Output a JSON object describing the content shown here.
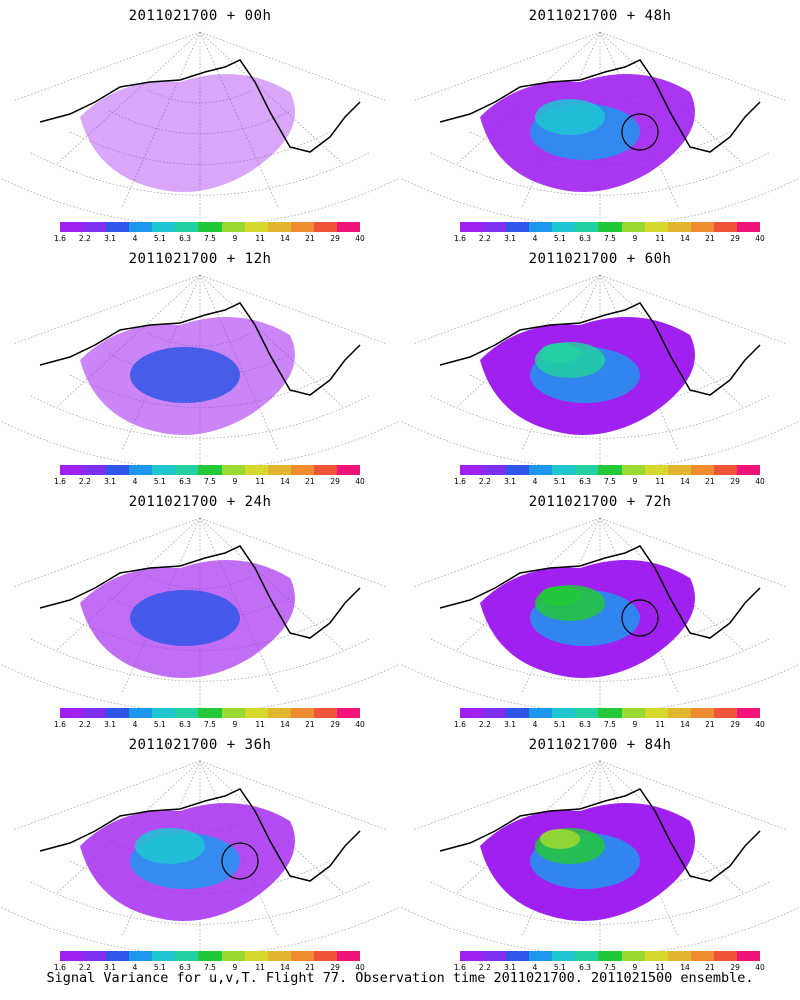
{
  "caption": "Signal Variance for u,v,T. Flight 77. Observation time 2011021700. 2011021500 ensemble.",
  "colorbar": {
    "ticks": [
      "1.6",
      "2.2",
      "3.1",
      "4",
      "5.1",
      "6.3",
      "7.5",
      "9",
      "11",
      "14",
      "21",
      "29",
      "40"
    ],
    "colors": [
      "#a020f0",
      "#7f2ff0",
      "#2f56e8",
      "#1e96ee",
      "#1ec6d2",
      "#22d0a0",
      "#22c838",
      "#9ad832",
      "#d7d82e",
      "#e2b52e",
      "#ee8c2e",
      "#f05438",
      "#f0147a"
    ]
  },
  "panels": [
    {
      "title": "2011021700 + 00h",
      "level": 0.05,
      "circle": false
    },
    {
      "title": "2011021700 + 48h",
      "level": 0.55,
      "circle": true
    },
    {
      "title": "2011021700 + 12h",
      "level": 0.2,
      "circle": false
    },
    {
      "title": "2011021700 + 60h",
      "level": 0.65,
      "circle": false
    },
    {
      "title": "2011021700 + 24h",
      "level": 0.3,
      "circle": false
    },
    {
      "title": "2011021700 + 72h",
      "level": 0.75,
      "circle": true
    },
    {
      "title": "2011021700 + 36h",
      "level": 0.45,
      "circle": true
    },
    {
      "title": "2011021700 + 84h",
      "level": 0.85,
      "circle": false
    }
  ]
}
